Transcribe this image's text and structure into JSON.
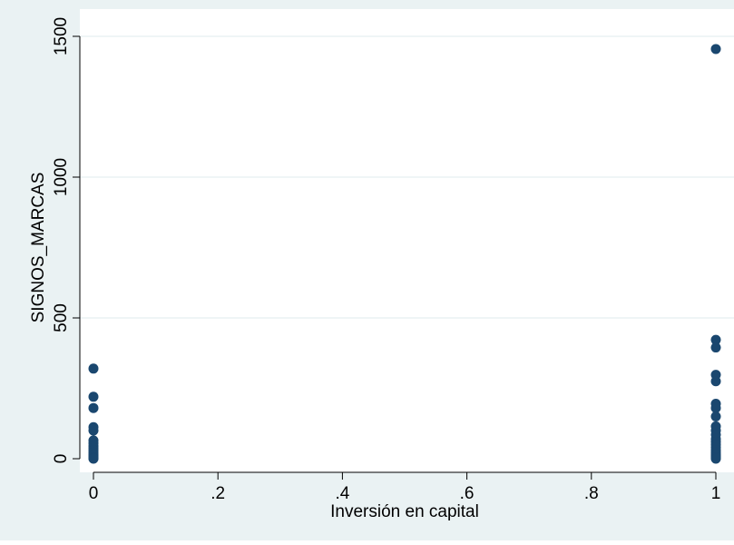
{
  "chart_data": {
    "type": "scatter",
    "title": "",
    "xlabel": "Inversión en capital",
    "ylabel": "SIGNOS_MARCAS",
    "xlim": [
      0,
      1
    ],
    "ylim": [
      0,
      1500
    ],
    "x_ticks": [
      {
        "value": 0,
        "label": "0"
      },
      {
        "value": 0.2,
        "label": ".2"
      },
      {
        "value": 0.4,
        "label": ".4"
      },
      {
        "value": 0.6,
        "label": ".6"
      },
      {
        "value": 0.8,
        "label": ".8"
      },
      {
        "value": 1,
        "label": "1"
      }
    ],
    "y_ticks": [
      {
        "value": 0,
        "label": "0"
      },
      {
        "value": 500,
        "label": "500"
      },
      {
        "value": 1000,
        "label": "1000"
      },
      {
        "value": 1500,
        "label": "1500"
      }
    ],
    "grid": "horizontal",
    "legend": "none",
    "colors": {
      "background": "#eaf2f3",
      "plot": "#ffffff",
      "marker": "#1a476f",
      "grid": "#eaf2f3"
    },
    "points": [
      {
        "x": 0,
        "y": 320
      },
      {
        "x": 0,
        "y": 220
      },
      {
        "x": 0,
        "y": 180
      },
      {
        "x": 0,
        "y": 112
      },
      {
        "x": 0,
        "y": 100
      },
      {
        "x": 0,
        "y": 65
      },
      {
        "x": 0,
        "y": 55
      },
      {
        "x": 0,
        "y": 45
      },
      {
        "x": 0,
        "y": 38
      },
      {
        "x": 0,
        "y": 30
      },
      {
        "x": 0,
        "y": 22
      },
      {
        "x": 0,
        "y": 15
      },
      {
        "x": 0,
        "y": 10
      },
      {
        "x": 0,
        "y": 5
      },
      {
        "x": 0,
        "y": 2
      },
      {
        "x": 0,
        "y": 0
      },
      {
        "x": 1,
        "y": 1455
      },
      {
        "x": 1,
        "y": 422
      },
      {
        "x": 1,
        "y": 395
      },
      {
        "x": 1,
        "y": 298
      },
      {
        "x": 1,
        "y": 275
      },
      {
        "x": 1,
        "y": 195
      },
      {
        "x": 1,
        "y": 180
      },
      {
        "x": 1,
        "y": 150
      },
      {
        "x": 1,
        "y": 115
      },
      {
        "x": 1,
        "y": 100
      },
      {
        "x": 1,
        "y": 85
      },
      {
        "x": 1,
        "y": 70
      },
      {
        "x": 1,
        "y": 60
      },
      {
        "x": 1,
        "y": 50
      },
      {
        "x": 1,
        "y": 40
      },
      {
        "x": 1,
        "y": 30
      },
      {
        "x": 1,
        "y": 22
      },
      {
        "x": 1,
        "y": 15
      },
      {
        "x": 1,
        "y": 10
      },
      {
        "x": 1,
        "y": 5
      },
      {
        "x": 1,
        "y": 0
      }
    ]
  }
}
